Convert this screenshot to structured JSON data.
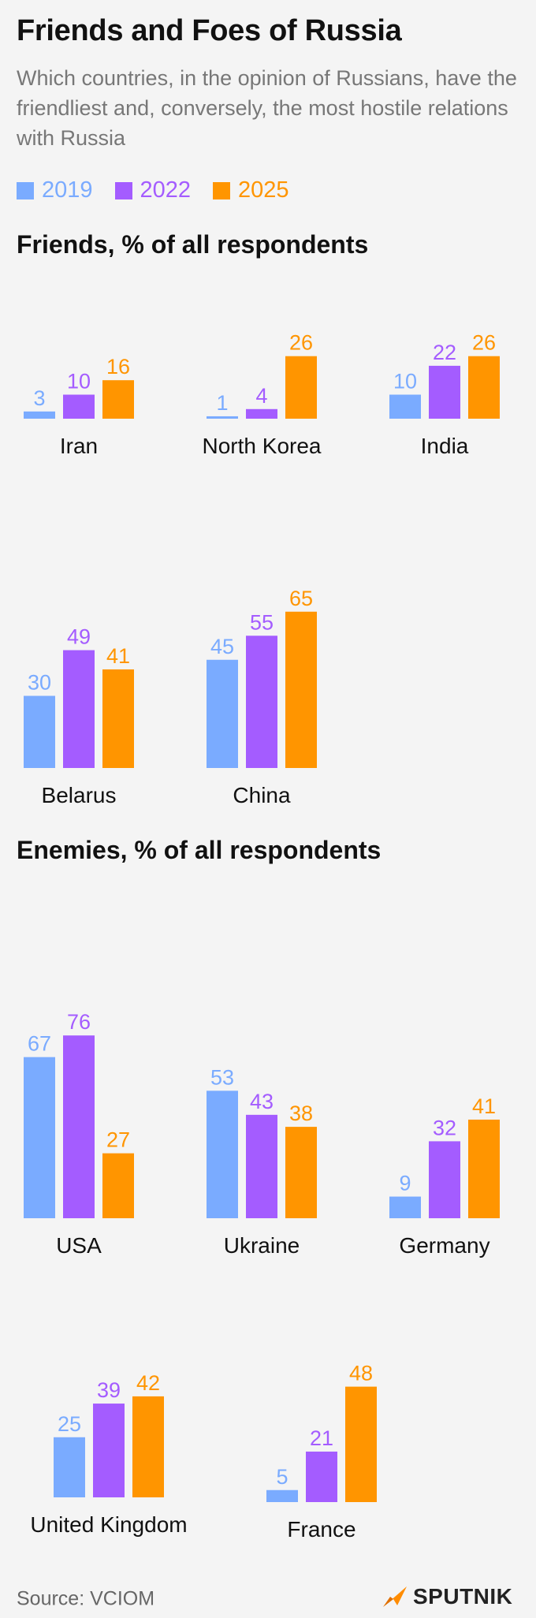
{
  "title": "Friends and Foes of Russia",
  "subtitle": "Which countries, in the opinion of Russians, have the friendliest and, conversely, the most hostile relations with Russia",
  "legend": [
    {
      "label": "2019",
      "color": "#7aabff"
    },
    {
      "label": "2022",
      "color": "#a45cff"
    },
    {
      "label": "2025",
      "color": "#ff9500"
    }
  ],
  "sections": {
    "friends": "Friends, % of all respondents",
    "enemies": "Enemies, % of all respondents"
  },
  "source": "Source: VCIOM",
  "logo": {
    "text": "SPUTNIK",
    "icon": "sputnik-logo-icon",
    "color": "#ff8c00"
  },
  "chart_data": [
    {
      "type": "bar",
      "title": "Friends, % of all respondents",
      "series_names": [
        "2019",
        "2022",
        "2025"
      ],
      "groups": [
        {
          "category": "Iran",
          "values": [
            3,
            10,
            16
          ]
        },
        {
          "category": "North Korea",
          "values": [
            1,
            4,
            26
          ]
        },
        {
          "category": "India",
          "values": [
            10,
            22,
            26
          ]
        },
        {
          "category": "Belarus",
          "values": [
            30,
            49,
            41
          ]
        },
        {
          "category": "China",
          "values": [
            45,
            55,
            65
          ]
        }
      ]
    },
    {
      "type": "bar",
      "title": "Enemies, % of all respondents",
      "series_names": [
        "2019",
        "2022",
        "2025"
      ],
      "groups": [
        {
          "category": "USA",
          "values": [
            67,
            76,
            27
          ]
        },
        {
          "category": "Ukraine",
          "values": [
            53,
            43,
            38
          ]
        },
        {
          "category": "Germany",
          "values": [
            9,
            32,
            41
          ]
        },
        {
          "category": "United Kingdom",
          "values": [
            25,
            39,
            42
          ]
        },
        {
          "category": "France",
          "values": [
            5,
            21,
            48
          ]
        }
      ]
    }
  ]
}
